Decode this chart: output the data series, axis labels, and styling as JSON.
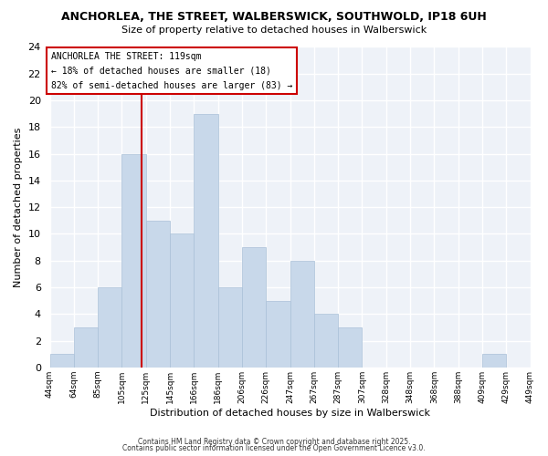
{
  "title": "ANCHORLEA, THE STREET, WALBERSWICK, SOUTHWOLD, IP18 6UH",
  "subtitle": "Size of property relative to detached houses in Walberswick",
  "xlabel": "Distribution of detached houses by size in Walberswick",
  "ylabel": "Number of detached properties",
  "bin_labels": [
    "44sqm",
    "64sqm",
    "85sqm",
    "105sqm",
    "125sqm",
    "145sqm",
    "166sqm",
    "186sqm",
    "206sqm",
    "226sqm",
    "247sqm",
    "267sqm",
    "287sqm",
    "307sqm",
    "328sqm",
    "348sqm",
    "368sqm",
    "388sqm",
    "409sqm",
    "429sqm",
    "449sqm"
  ],
  "counts": [
    1,
    3,
    6,
    16,
    11,
    10,
    19,
    6,
    9,
    5,
    8,
    4,
    3,
    0,
    0,
    0,
    0,
    0,
    1,
    0
  ],
  "bar_color": "#c8d8ea",
  "bar_edge_color": "#aac0d8",
  "property_line_bin": 3.82,
  "property_line_color": "#cc0000",
  "ylim": [
    0,
    24
  ],
  "yticks": [
    0,
    2,
    4,
    6,
    8,
    10,
    12,
    14,
    16,
    18,
    20,
    22,
    24
  ],
  "annotation_title": "ANCHORLEA THE STREET: 119sqm",
  "annotation_line1": "← 18% of detached houses are smaller (18)",
  "annotation_line2": "82% of semi-detached houses are larger (83) →",
  "annotation_box_facecolor": "#ffffff",
  "annotation_box_edgecolor": "#cc0000",
  "bg_color": "#ffffff",
  "plot_bg_color": "#eef2f8",
  "grid_color": "#ffffff",
  "footer1": "Contains HM Land Registry data © Crown copyright and database right 2025.",
  "footer2": "Contains public sector information licensed under the Open Government Licence v3.0."
}
